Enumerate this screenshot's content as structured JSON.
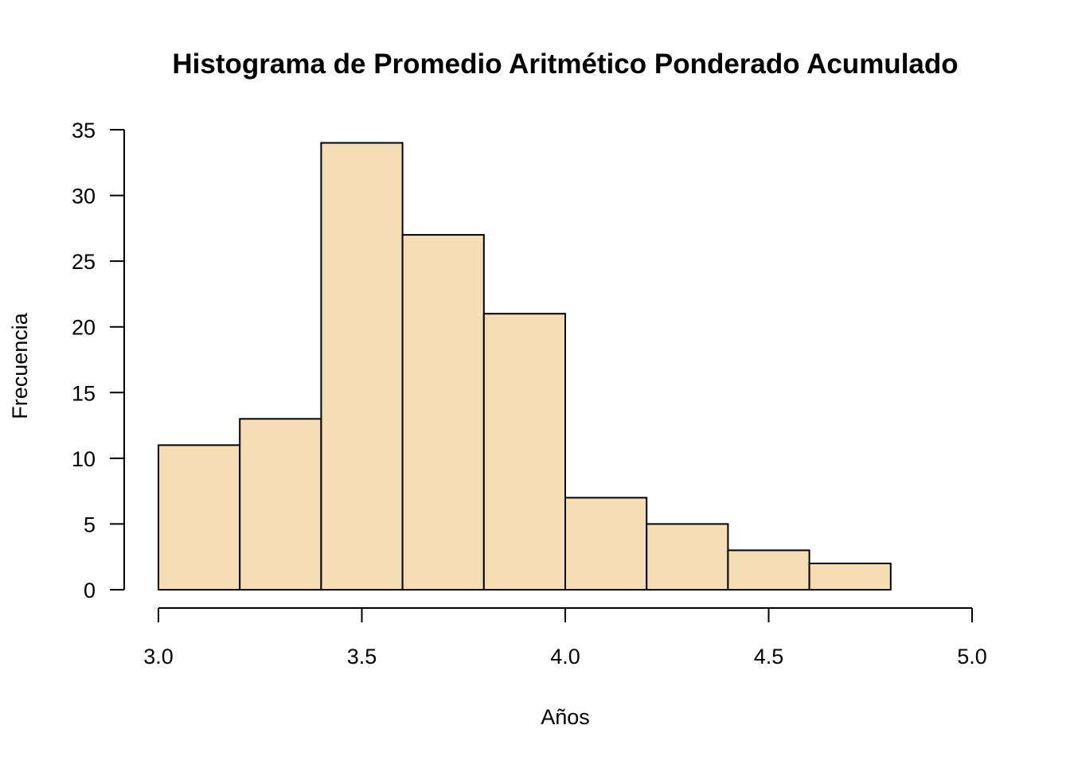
{
  "chart_data": {
    "type": "bar",
    "title": "Histograma de Promedio Aritmético Ponderado Acumulado",
    "xlabel": "Años",
    "ylabel": "Frecuencia",
    "bins": [
      {
        "start": 3.0,
        "end": 3.2,
        "count": 11
      },
      {
        "start": 3.2,
        "end": 3.4,
        "count": 13
      },
      {
        "start": 3.4,
        "end": 3.6,
        "count": 34
      },
      {
        "start": 3.6,
        "end": 3.8,
        "count": 27
      },
      {
        "start": 3.8,
        "end": 4.0,
        "count": 21
      },
      {
        "start": 4.0,
        "end": 4.2,
        "count": 7
      },
      {
        "start": 4.2,
        "end": 4.4,
        "count": 5
      },
      {
        "start": 4.4,
        "end": 4.6,
        "count": 3
      },
      {
        "start": 4.6,
        "end": 4.8,
        "count": 2
      }
    ],
    "xlim": [
      3.0,
      5.0
    ],
    "ylim": [
      0,
      35
    ],
    "x_ticks": [
      "3.0",
      "3.5",
      "4.0",
      "4.5",
      "5.0"
    ],
    "y_ticks": [
      "0",
      "5",
      "10",
      "15",
      "20",
      "25",
      "30",
      "35"
    ],
    "bar_color": "#F5DEB3",
    "grid": false
  }
}
